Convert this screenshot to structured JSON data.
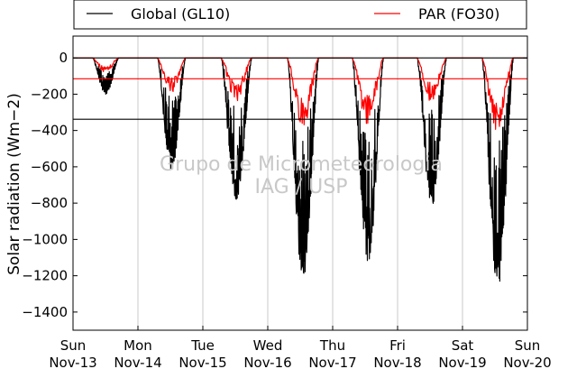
{
  "chart_data": {
    "type": "line",
    "title": "",
    "xlabel": "",
    "ylabel": "Solar radiation (Wm−2)",
    "ylim": [
      -1500,
      120
    ],
    "yticks": [
      0,
      -200,
      -400,
      -600,
      -800,
      -1000,
      -1200,
      -1400
    ],
    "xlim": [
      0,
      7
    ],
    "xticks": [
      {
        "x": 0,
        "day": "Sun",
        "date": "Nov-13"
      },
      {
        "x": 1,
        "day": "Mon",
        "date": "Nov-14"
      },
      {
        "x": 2,
        "day": "Tue",
        "date": "Nov-15"
      },
      {
        "x": 3,
        "day": "Wed",
        "date": "Nov-16"
      },
      {
        "x": 4,
        "day": "Thu",
        "date": "Nov-17"
      },
      {
        "x": 5,
        "day": "Fri",
        "date": "Nov-18"
      },
      {
        "x": 6,
        "day": "Sat",
        "date": "Nov-19"
      },
      {
        "x": 7,
        "day": "Sun",
        "date": "Nov-20"
      }
    ],
    "grid": "vertical",
    "legend_position": "top",
    "reference_lines": [
      {
        "y": 0,
        "color": "#000000"
      },
      {
        "y": -115,
        "color": "#ff0000"
      },
      {
        "y": -338,
        "color": "#000000"
      }
    ],
    "series": [
      {
        "name": "Global (GL10)",
        "color": "#000000",
        "days": [
          {
            "peak": -200,
            "start": 0.3,
            "end": 0.7
          },
          {
            "peak": -620,
            "start": 0.3,
            "end": 0.73
          },
          {
            "peak": -790,
            "start": 0.28,
            "end": 0.75
          },
          {
            "peak": -1240,
            "start": 0.3,
            "end": 0.78
          },
          {
            "peak": -1130,
            "start": 0.3,
            "end": 0.78
          },
          {
            "peak": -820,
            "start": 0.3,
            "end": 0.75
          },
          {
            "peak": -1270,
            "start": 0.3,
            "end": 0.78
          }
        ]
      },
      {
        "name": "PAR (FO30)",
        "color": "#ff0000",
        "days": [
          {
            "peak": -80,
            "start": 0.3,
            "end": 0.7
          },
          {
            "peak": -200,
            "start": 0.3,
            "end": 0.73
          },
          {
            "peak": -240,
            "start": 0.28,
            "end": 0.75
          },
          {
            "peak": -400,
            "start": 0.3,
            "end": 0.78
          },
          {
            "peak": -370,
            "start": 0.3,
            "end": 0.78
          },
          {
            "peak": -250,
            "start": 0.3,
            "end": 0.75
          },
          {
            "peak": -420,
            "start": 0.3,
            "end": 0.78
          }
        ]
      }
    ],
    "watermark": [
      "Grupo de Micrometeorologia",
      "IAG / USP"
    ]
  }
}
